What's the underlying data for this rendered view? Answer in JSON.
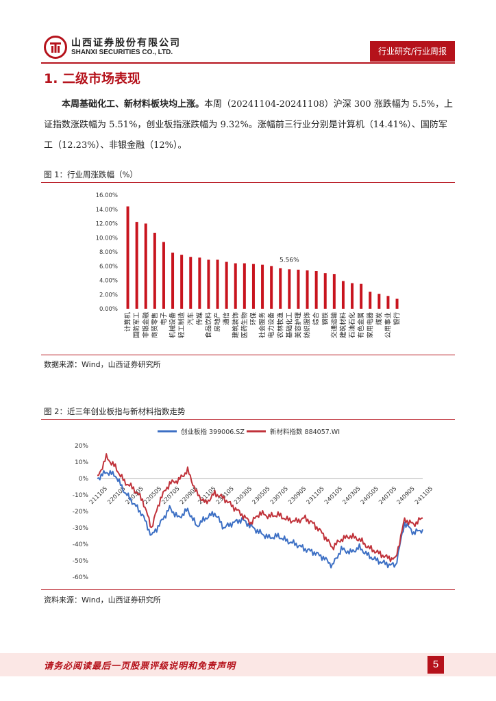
{
  "header": {
    "company_cn": "山西证券股份有限公司",
    "company_en": "SHANXI SECURITIES CO., LTD.",
    "report_type": "行业研究/行业周报"
  },
  "section": {
    "title": "1. 二级市场表现"
  },
  "paragraph": {
    "lead": "本周基础化工、新材料板块均上涨。",
    "body": "本周（20241104-20241108）沪深 300 涨跌幅为 5.5%，上证指数涨跌幅为 5.51%，创业板指涨跌幅为 9.32%。涨幅前三行业分别是计算机（14.41%）、国防军工（12.23%）、非银金融（12%）。"
  },
  "figure1": {
    "title": "图 1：行业周涨跌幅（%）",
    "source": "数据来源：Wind，山西证券研究所"
  },
  "figure2": {
    "title": "图 2：近三年创业板指与新材料指数走势",
    "source": "资料来源：Wind，山西证券研究所"
  },
  "footer": {
    "disclaimer": "请务必阅读最后一页股票评级说明和免责声明",
    "page": "5"
  },
  "colors": {
    "brand_red": "#b5121b",
    "bar_red": "#c8141e",
    "line_blue": "#3c6fc4",
    "line_red": "#c0323a"
  },
  "chart_data": [
    {
      "type": "bar",
      "title": "行业周涨跌幅（%）",
      "categories": [
        "计算机",
        "国防军工",
        "非银金融",
        "商贸零售",
        "电子",
        "机械设备",
        "轻工制造",
        "汽车",
        "传媒",
        "食品饮料",
        "房地产",
        "通信",
        "建筑装饰",
        "医药生物",
        "环保",
        "社会服务",
        "电力设备",
        "农林牧渔",
        "基础化工",
        "美容护理",
        "纺织服饰",
        "综合",
        "钢铁",
        "交通运输",
        "建筑材料",
        "石油石化",
        "有色金属",
        "家用电器",
        "煤炭",
        "公用事业",
        "银行"
      ],
      "values": [
        14.41,
        12.23,
        12.0,
        10.7,
        9.4,
        7.9,
        7.6,
        7.3,
        7.2,
        6.9,
        6.9,
        6.6,
        6.4,
        6.4,
        6.3,
        6.2,
        6.0,
        5.7,
        5.56,
        5.5,
        5.4,
        5.3,
        5.0,
        4.9,
        3.9,
        3.6,
        3.5,
        2.4,
        2.1,
        1.8,
        1.4
      ],
      "highlight_label": "5.56%",
      "yticks": [
        "0.00%",
        "2.00%",
        "4.00%",
        "6.00%",
        "8.00%",
        "10.00%",
        "12.00%",
        "14.00%",
        "16.00%"
      ],
      "ylim": [
        0,
        16
      ]
    },
    {
      "type": "line",
      "title": "近三年创业板指与新材料指数走势",
      "legend": [
        "创业板指 399006.SZ",
        "新材料指数 884057.WI"
      ],
      "x_ticks": [
        "211105",
        "220105",
        "220305",
        "220505",
        "220705",
        "220905",
        "221105",
        "230105",
        "230305",
        "230505",
        "230705",
        "230905",
        "231105",
        "240105",
        "240305",
        "240505",
        "240705",
        "240905",
        "241105"
      ],
      "yticks": [
        "20%",
        "10%",
        "0%",
        "-10%",
        "-20%",
        "-30%",
        "-40%",
        "-50%",
        "-60%"
      ],
      "ylim": [
        -60,
        20
      ],
      "series": [
        {
          "name": "创业板指 399006.SZ",
          "values": [
            0,
            4,
            2,
            -8,
            -15,
            -22,
            -35,
            -27,
            -18,
            -24,
            -19,
            -29,
            -24,
            -21,
            -30,
            -27,
            -25,
            -29,
            -33,
            -36,
            -35,
            -38,
            -40,
            -43,
            -45,
            -48,
            -53,
            -43,
            -45,
            -42,
            -47,
            -50,
            -52,
            -53,
            -27,
            -33,
            -31
          ]
        },
        {
          "name": "新材料指数 884057.WI",
          "values": [
            0,
            13,
            7,
            -2,
            -6,
            -13,
            -30,
            -12,
            -3,
            -1,
            5,
            -9,
            -15,
            -9,
            -12,
            -17,
            -22,
            -27,
            -21,
            -23,
            -22,
            -25,
            -26,
            -24,
            -28,
            -34,
            -42,
            -37,
            -35,
            -37,
            -42,
            -45,
            -48,
            -49,
            -25,
            -28,
            -24
          ]
        }
      ]
    }
  ]
}
